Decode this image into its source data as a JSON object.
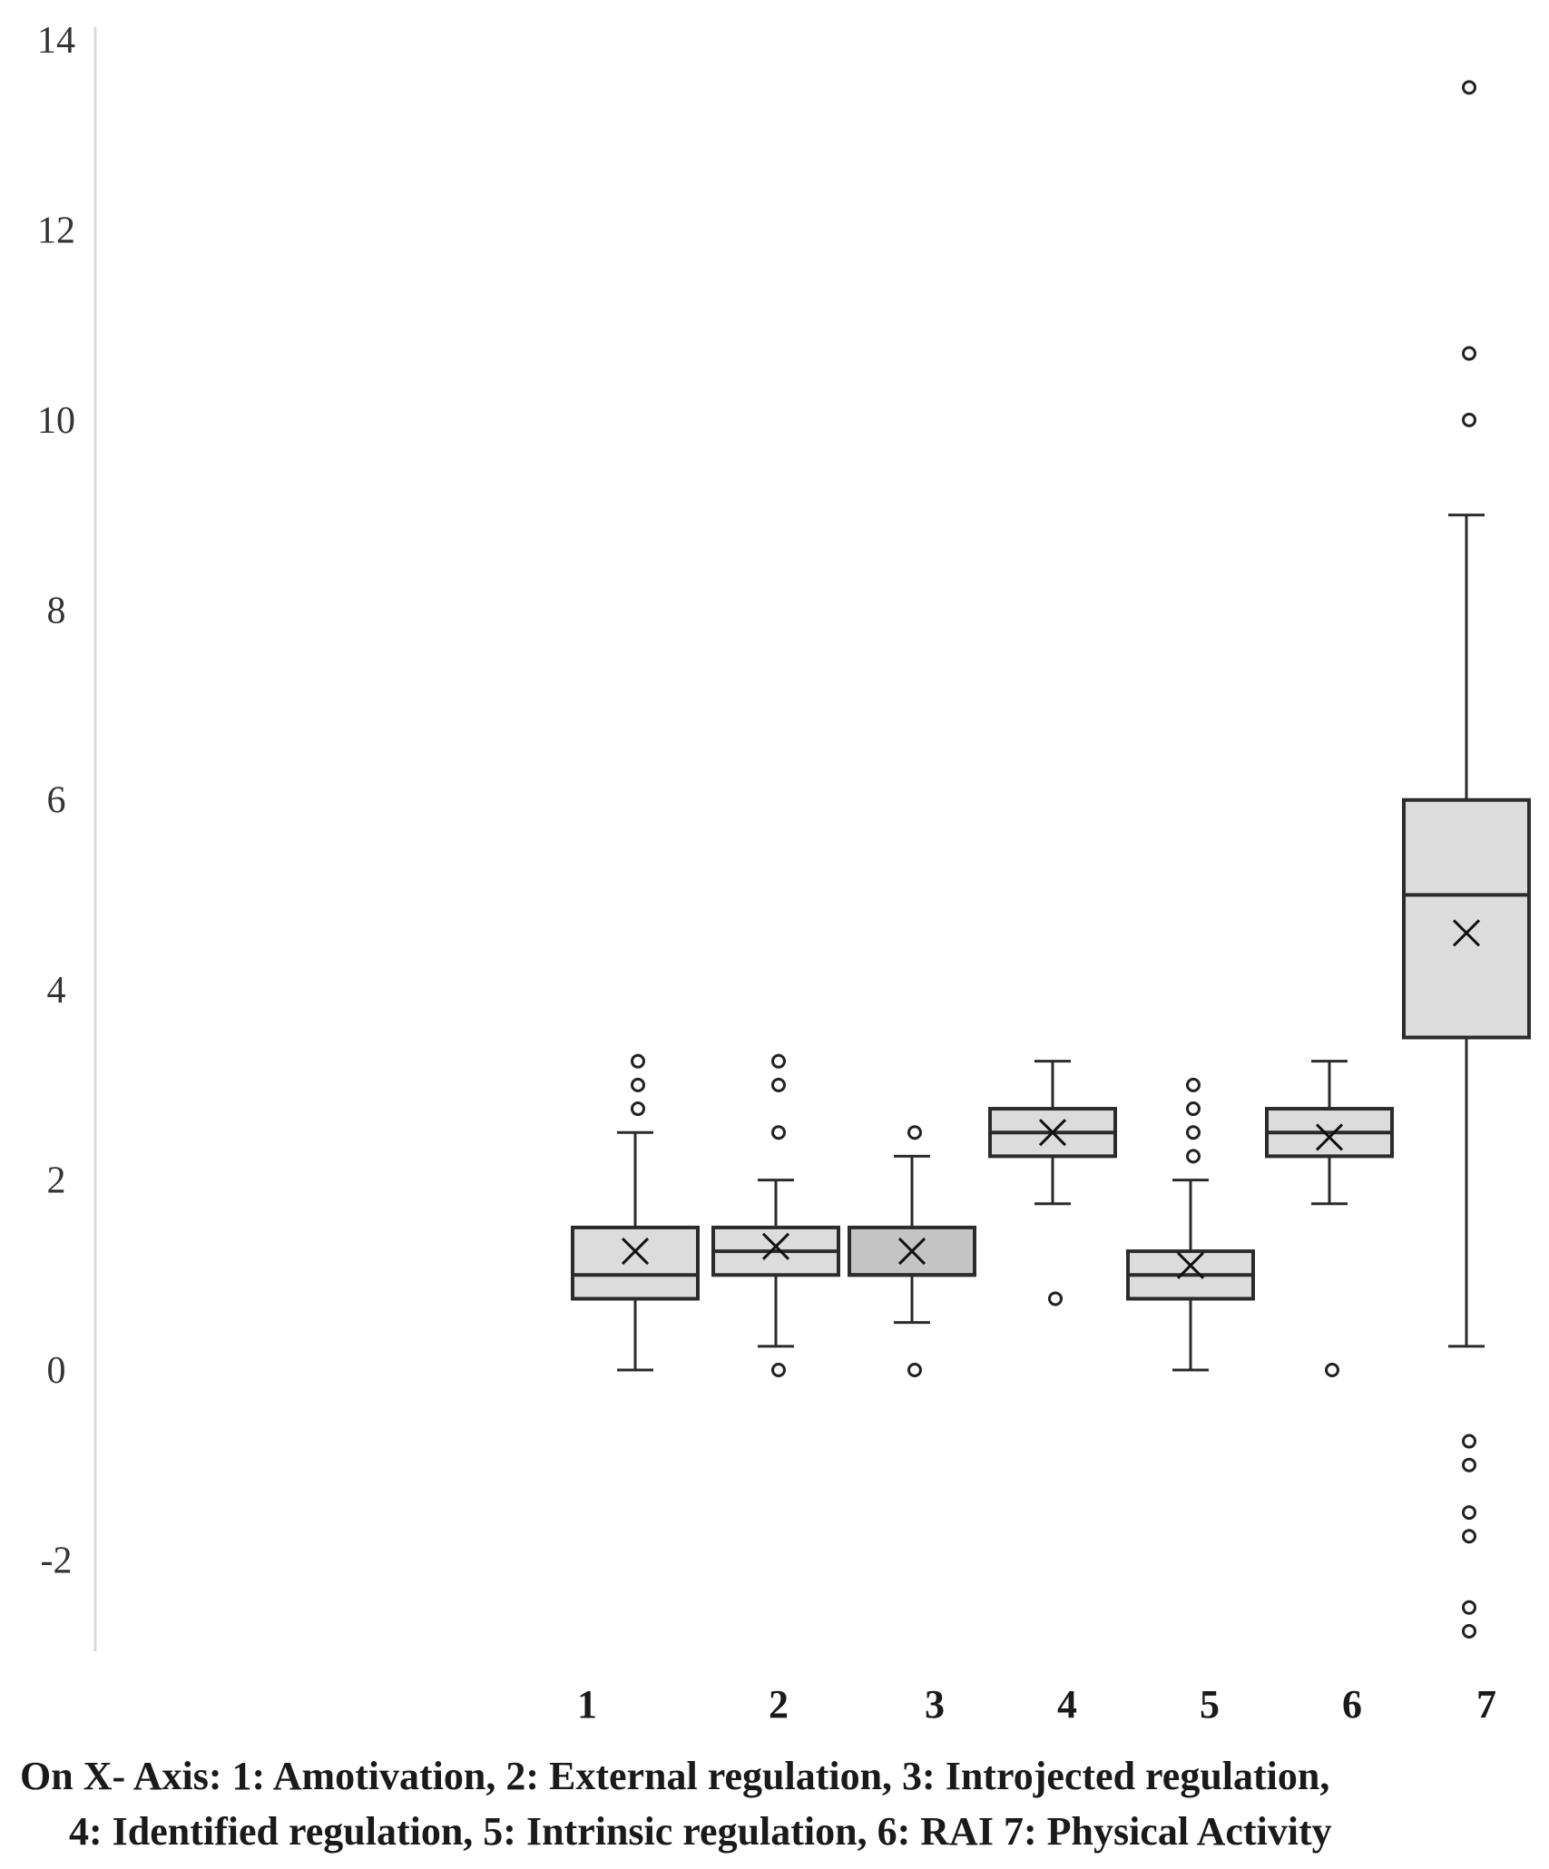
{
  "chart_data": {
    "type": "box",
    "ylim": [
      -3,
      14
    ],
    "yticks": [
      -2,
      0,
      2,
      4,
      6,
      8,
      10,
      12,
      14
    ],
    "categories": [
      "1",
      "2",
      "3",
      "4",
      "5",
      "6",
      "7"
    ],
    "grid": false,
    "boxes": [
      {
        "category": "1",
        "whisker_low": 0,
        "q1": 0.75,
        "median": 1,
        "q3": 1.5,
        "whisker_high": 2.5,
        "mean": 1.25,
        "outliers": [
          2.75,
          3.0,
          3.25
        ],
        "fill": "#dcdcdc"
      },
      {
        "category": "2",
        "whisker_low": 0.25,
        "q1": 1.0,
        "median": 1.25,
        "q3": 1.5,
        "whisker_high": 2.0,
        "mean": 1.3,
        "outliers": [
          0,
          2.5,
          3.0,
          3.25
        ],
        "fill": "#dcdcdc"
      },
      {
        "category": "3",
        "whisker_low": 0.5,
        "q1": 1.0,
        "median": 1.0,
        "q3": 1.5,
        "whisker_high": 2.25,
        "mean": 1.25,
        "outliers": [
          0,
          2.5
        ],
        "fill": "#c4c4c4"
      },
      {
        "category": "4",
        "whisker_low": 1.75,
        "q1": 2.25,
        "median": 2.5,
        "q3": 2.75,
        "whisker_high": 3.25,
        "mean": 2.5,
        "outliers": [
          0.75
        ],
        "fill": "#dcdcdc"
      },
      {
        "category": "5",
        "whisker_low": 0,
        "q1": 0.75,
        "median": 1.0,
        "q3": 1.25,
        "whisker_high": 2.0,
        "mean": 1.1,
        "outliers": [
          2.25,
          2.5,
          2.75,
          3.0
        ],
        "fill": "#dcdcdc"
      },
      {
        "category": "6",
        "whisker_low": 1.75,
        "q1": 2.25,
        "median": 2.5,
        "q3": 2.75,
        "whisker_high": 3.25,
        "mean": 2.45,
        "outliers": [
          0
        ],
        "fill": "#dcdcdc"
      },
      {
        "category": "7",
        "whisker_low": 0.25,
        "q1": 3.5,
        "median": 5.0,
        "q3": 6.0,
        "whisker_high": 9.0,
        "mean": 4.6,
        "outliers": [
          13.5,
          10.7,
          10.0,
          -0.75,
          -1.0,
          -1.5,
          -1.75,
          -2.5,
          -2.75
        ],
        "fill": "#dcdcdc"
      }
    ],
    "xlabel_note": [
      "On X- Axis: 1: Amotivation, 2: External regulation, 3: Introjected regulation,",
      "4: Identified regulation, 5: Intrinsic regulation, 6: RAI 7: Physical Activity"
    ]
  }
}
